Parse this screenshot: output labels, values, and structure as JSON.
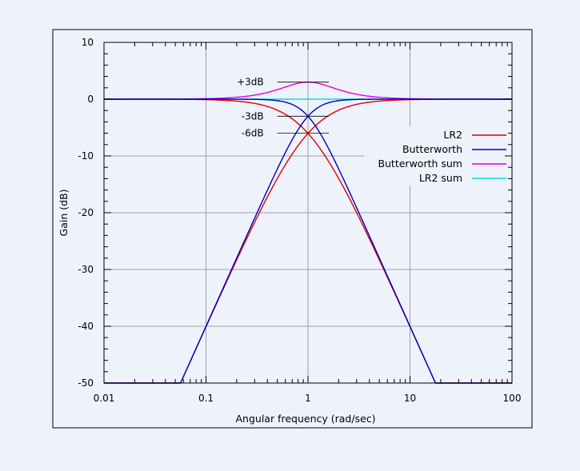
{
  "chart_data": {
    "type": "line",
    "xlabel": "Angular frequency (rad/sec)",
    "ylabel": "Gain (dB)",
    "xscale": "log",
    "xlim": [
      0.01,
      100
    ],
    "ylim": [
      -50,
      10
    ],
    "xticks": [
      0.01,
      0.1,
      1,
      10,
      100
    ],
    "xtick_labels": [
      "0.01",
      "0.1",
      "1",
      "10",
      "100"
    ],
    "yticks": [
      10,
      0,
      -10,
      -20,
      -30,
      -40,
      -50
    ],
    "ytick_labels": [
      "10",
      "0",
      "-10",
      "-20",
      "-30",
      "-40",
      "-50"
    ],
    "grid": true,
    "legend_position": "right-middle",
    "series": [
      {
        "name": "LR2",
        "color": "#e00000",
        "kind": "lr2"
      },
      {
        "name": "Butterworth",
        "color": "#0000c0",
        "kind": "butterworth"
      },
      {
        "name": "Butterworth sum",
        "color": "#e000e0",
        "kind": "butterworth_sum"
      },
      {
        "name": "LR2 sum",
        "color": "#00e0e0",
        "kind": "lr2_sum"
      }
    ],
    "annotations": [
      {
        "label": "+3dB",
        "y": 3
      },
      {
        "label": "-3dB",
        "y": -3
      },
      {
        "label": "-6dB",
        "y": -6
      }
    ]
  }
}
